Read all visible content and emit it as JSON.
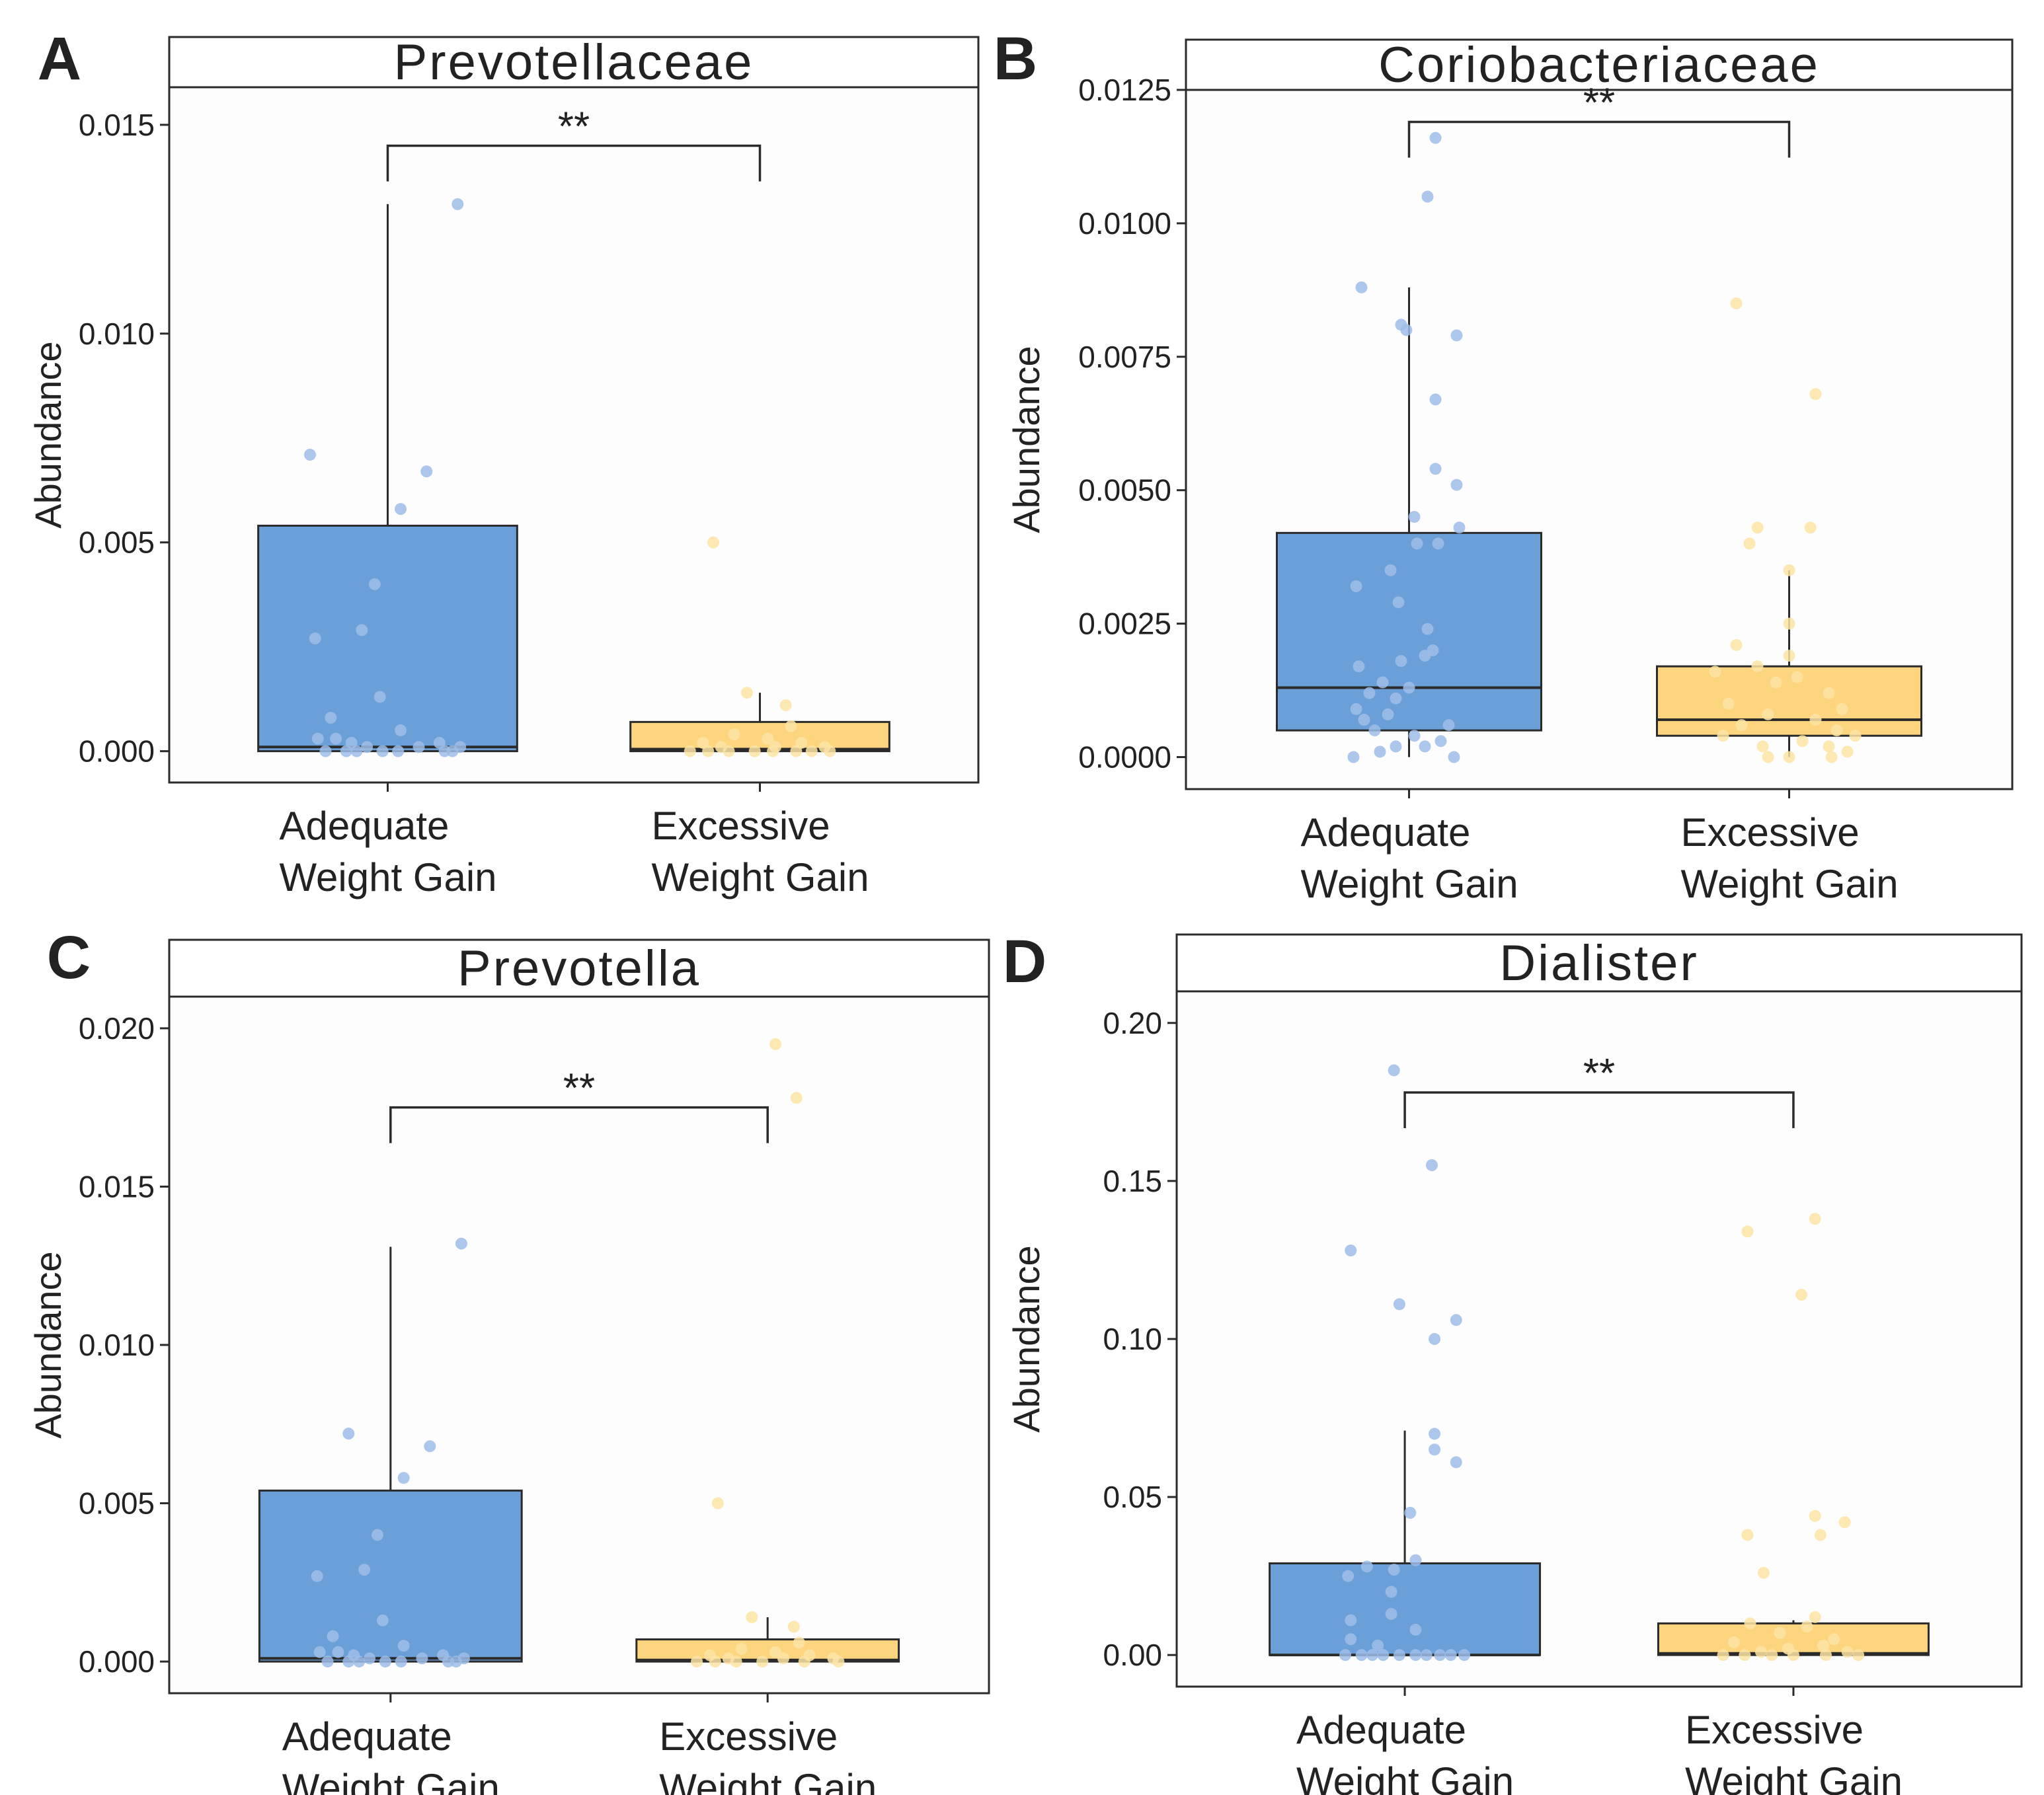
{
  "figure": {
    "colors": {
      "adequate": "#6a9fd8",
      "excessive": "#fdd57f",
      "adequate_point": "#9dbde8",
      "excessive_point": "#fde4a4",
      "frame": "#2b2b2b",
      "panel_bg": "#fdfdfd"
    }
  },
  "chart_data": [
    {
      "panel": "A",
      "type": "box",
      "title": "Prevotellaceae",
      "ylabel": "Abundance",
      "ylim": [
        -0.00075,
        0.0159
      ],
      "yticks": [
        0.0,
        0.005,
        0.01,
        0.015
      ],
      "ytick_labels": [
        "0.000",
        "0.005",
        "0.010",
        "0.015"
      ],
      "categories": [
        "Adequate\nWeight Gain",
        "Excessive\nWeight Gain"
      ],
      "significance": "**",
      "bracket_y": 0.0145,
      "boxes": [
        {
          "group": "Adequate Weight Gain",
          "q1": 0.0,
          "median": 0.0001,
          "q3": 0.0054,
          "whisker_low": 0.0,
          "whisker_high": 0.0131
        },
        {
          "group": "Excessive Weight Gain",
          "q1": 0.0,
          "median": 5e-05,
          "q3": 0.0007,
          "whisker_low": 0.0,
          "whisker_high": 0.0014
        }
      ],
      "points": [
        {
          "group": 0,
          "values": [
            0.0131,
            0.0071,
            0.0067,
            0.0058,
            0.004,
            0.0029,
            0.0027,
            0.0013,
            0.0008,
            0.0005,
            0.0003,
            0.0003,
            0.0002,
            0.0002,
            0.0001,
            0.0001,
            0.0001,
            0.0,
            0.0,
            0.0,
            0.0,
            0.0,
            0.0,
            0.0
          ],
          "jitter": [
            0.27,
            -0.3,
            0.15,
            0.05,
            -0.05,
            -0.1,
            -0.28,
            -0.03,
            -0.22,
            0.05,
            -0.27,
            -0.2,
            -0.14,
            0.2,
            -0.08,
            0.12,
            0.28,
            -0.24,
            -0.16,
            -0.12,
            -0.02,
            0.04,
            0.22,
            0.25
          ]
        },
        {
          "group": 1,
          "values": [
            0.005,
            0.0014,
            0.0011,
            0.0006,
            0.0004,
            0.0003,
            0.0002,
            0.0002,
            0.0001,
            0.0001,
            0.0001,
            0.0,
            0.0,
            0.0,
            0.0,
            0.0,
            0.0,
            0.0,
            0.0
          ],
          "jitter": [
            -0.18,
            -0.05,
            0.1,
            0.12,
            -0.1,
            0.03,
            -0.22,
            0.16,
            -0.15,
            0.06,
            0.25,
            -0.27,
            -0.2,
            -0.12,
            -0.02,
            0.05,
            0.14,
            0.2,
            0.27
          ]
        }
      ]
    },
    {
      "panel": "B",
      "type": "box",
      "title": "Coriobacteriaceae",
      "ylabel": "Abundance",
      "ylim": [
        -0.0006,
        0.0125
      ],
      "yticks": [
        0.0,
        0.0025,
        0.005,
        0.0075,
        0.01,
        0.0125
      ],
      "ytick_labels": [
        "0.0000",
        "0.0025",
        "0.0050",
        "0.0075",
        "0.0100",
        "0.0125"
      ],
      "categories": [
        "Adequate\nWeight Gain",
        "Excessive\nWeight Gain"
      ],
      "significance": "**",
      "bracket_y": 0.0119,
      "boxes": [
        {
          "group": "Adequate Weight Gain",
          "q1": 0.0005,
          "median": 0.0013,
          "q3": 0.0042,
          "whisker_low": 0.0,
          "whisker_high": 0.0088
        },
        {
          "group": "Excessive Weight Gain",
          "q1": 0.0004,
          "median": 0.0007,
          "q3": 0.0017,
          "whisker_low": 0.0,
          "whisker_high": 0.0035
        }
      ],
      "points": [
        {
          "group": 0,
          "values": [
            0.0116,
            0.0105,
            0.0088,
            0.0081,
            0.008,
            0.0079,
            0.0067,
            0.0054,
            0.0051,
            0.0045,
            0.0043,
            0.004,
            0.004,
            0.0035,
            0.0032,
            0.0029,
            0.0024,
            0.002,
            0.0019,
            0.0018,
            0.0017,
            0.0014,
            0.0013,
            0.0012,
            0.0011,
            0.0009,
            0.0008,
            0.0007,
            0.0006,
            0.0005,
            0.0004,
            0.0003,
            0.0002,
            0.0002,
            0.0001,
            0.0,
            0.0
          ],
          "jitter": [
            0.1,
            0.07,
            -0.18,
            -0.03,
            -0.01,
            0.18,
            0.1,
            0.1,
            0.18,
            0.02,
            0.19,
            0.03,
            0.11,
            -0.07,
            -0.2,
            -0.04,
            0.07,
            0.09,
            0.06,
            -0.03,
            -0.19,
            -0.1,
            0.0,
            -0.15,
            -0.05,
            -0.2,
            -0.08,
            -0.17,
            0.15,
            -0.13,
            0.02,
            0.12,
            -0.05,
            0.06,
            -0.11,
            -0.21,
            0.17
          ]
        },
        {
          "group": 1,
          "values": [
            0.0085,
            0.0068,
            0.0043,
            0.0043,
            0.004,
            0.0035,
            0.0025,
            0.0021,
            0.0019,
            0.0017,
            0.0016,
            0.0015,
            0.0014,
            0.0012,
            0.001,
            0.0009,
            0.0008,
            0.0007,
            0.0006,
            0.0005,
            0.0004,
            0.0004,
            0.0003,
            0.0002,
            0.0002,
            0.0001,
            0.0,
            0.0,
            0.0
          ],
          "jitter": [
            -0.2,
            0.1,
            -0.12,
            0.08,
            -0.15,
            0.0,
            0.0,
            -0.2,
            0.0,
            -0.12,
            -0.28,
            0.03,
            -0.05,
            0.15,
            -0.23,
            0.2,
            -0.08,
            0.1,
            -0.18,
            0.18,
            -0.25,
            0.25,
            0.05,
            -0.1,
            0.15,
            0.22,
            -0.08,
            0.0,
            0.16
          ]
        }
      ]
    },
    {
      "panel": "C",
      "type": "box",
      "title": "Prevotella",
      "ylabel": "Abundance",
      "ylim": [
        -0.001,
        0.021
      ],
      "yticks": [
        0.0,
        0.005,
        0.01,
        0.015,
        0.02
      ],
      "ytick_labels": [
        "0.000",
        "0.005",
        "0.010",
        "0.015",
        "0.020"
      ],
      "categories": [
        "Adequate\nWeight Gain",
        "Excessive\nWeight Gain"
      ],
      "significance": "**",
      "bracket_y": 0.0175,
      "boxes": [
        {
          "group": "Adequate Weight Gain",
          "q1": 0.0,
          "median": 0.0001,
          "q3": 0.0054,
          "whisker_low": 0.0,
          "whisker_high": 0.0131
        },
        {
          "group": "Excessive Weight Gain",
          "q1": 0.0,
          "median": 5e-05,
          "q3": 0.0007,
          "whisker_low": 0.0,
          "whisker_high": 0.0014
        }
      ],
      "points": [
        {
          "group": 0,
          "values": [
            0.0132,
            0.0072,
            0.0068,
            0.0058,
            0.004,
            0.0029,
            0.0027,
            0.0013,
            0.0008,
            0.0005,
            0.0003,
            0.0003,
            0.0002,
            0.0002,
            0.0001,
            0.0001,
            0.0001,
            0.0,
            0.0,
            0.0,
            0.0,
            0.0,
            0.0,
            0.0
          ],
          "jitter": [
            0.27,
            -0.16,
            0.15,
            0.05,
            -0.05,
            -0.1,
            -0.28,
            -0.03,
            -0.22,
            0.05,
            -0.27,
            -0.2,
            -0.14,
            0.2,
            -0.08,
            0.12,
            0.28,
            -0.24,
            -0.16,
            -0.12,
            -0.02,
            0.04,
            0.22,
            0.25
          ]
        },
        {
          "group": 1,
          "values": [
            0.0195,
            0.0178,
            0.005,
            0.0014,
            0.0011,
            0.0006,
            0.0004,
            0.0003,
            0.0002,
            0.0002,
            0.0001,
            0.0001,
            0.0001,
            0.0,
            0.0,
            0.0,
            0.0,
            0.0,
            0.0
          ],
          "jitter": [
            0.03,
            0.11,
            -0.19,
            -0.06,
            0.1,
            0.12,
            -0.1,
            0.03,
            -0.22,
            0.16,
            -0.15,
            0.06,
            0.25,
            -0.27,
            -0.2,
            -0.12,
            -0.02,
            0.14,
            0.27
          ]
        }
      ]
    },
    {
      "panel": "D",
      "type": "box",
      "title": "Dialister",
      "ylabel": "Abundance",
      "ylim": [
        -0.01,
        0.21
      ],
      "yticks": [
        0.0,
        0.05,
        0.1,
        0.15,
        0.2
      ],
      "ytick_labels": [
        "0.00",
        "0.05",
        "0.10",
        "0.15",
        "0.20"
      ],
      "categories": [
        "Adequate\nWeight Gain",
        "Excessive\nWeight Gain"
      ],
      "significance": "**",
      "bracket_y": 0.178,
      "boxes": [
        {
          "group": "Adequate Weight Gain",
          "q1": 0.0,
          "median": 0.0,
          "q3": 0.029,
          "whisker_low": 0.0,
          "whisker_high": 0.071
        },
        {
          "group": "Excessive Weight Gain",
          "q1": 0.0,
          "median": 0.0005,
          "q3": 0.01,
          "whisker_low": 0.0,
          "whisker_high": 0.011
        }
      ],
      "points": [
        {
          "group": 0,
          "values": [
            0.185,
            0.155,
            0.128,
            0.111,
            0.106,
            0.1,
            0.07,
            0.065,
            0.061,
            0.045,
            0.03,
            0.028,
            0.027,
            0.025,
            0.02,
            0.013,
            0.011,
            0.008,
            0.005,
            0.003,
            0.0,
            0.0,
            0.0,
            0.0,
            0.0,
            0.0,
            0.0,
            0.0,
            0.0,
            0.0
          ],
          "jitter": [
            -0.04,
            0.1,
            -0.2,
            -0.02,
            0.19,
            0.11,
            0.11,
            0.11,
            0.19,
            0.02,
            0.04,
            -0.14,
            -0.04,
            -0.21,
            -0.05,
            -0.05,
            -0.2,
            0.04,
            -0.2,
            -0.1,
            -0.22,
            -0.16,
            -0.12,
            -0.08,
            -0.02,
            0.04,
            0.08,
            0.13,
            0.17,
            0.22
          ]
        },
        {
          "group": 1,
          "values": [
            0.138,
            0.134,
            0.114,
            0.044,
            0.042,
            0.038,
            0.038,
            0.026,
            0.012,
            0.01,
            0.009,
            0.007,
            0.005,
            0.004,
            0.003,
            0.002,
            0.001,
            0.001,
            0.0,
            0.0,
            0.0,
            0.0,
            0.0,
            0.0
          ],
          "jitter": [
            0.08,
            -0.17,
            0.03,
            0.08,
            0.19,
            -0.17,
            0.1,
            -0.11,
            0.08,
            -0.16,
            0.05,
            -0.05,
            0.15,
            -0.22,
            0.11,
            -0.02,
            -0.12,
            0.2,
            -0.26,
            -0.18,
            -0.08,
            0.0,
            0.12,
            0.24
          ]
        }
      ]
    }
  ]
}
